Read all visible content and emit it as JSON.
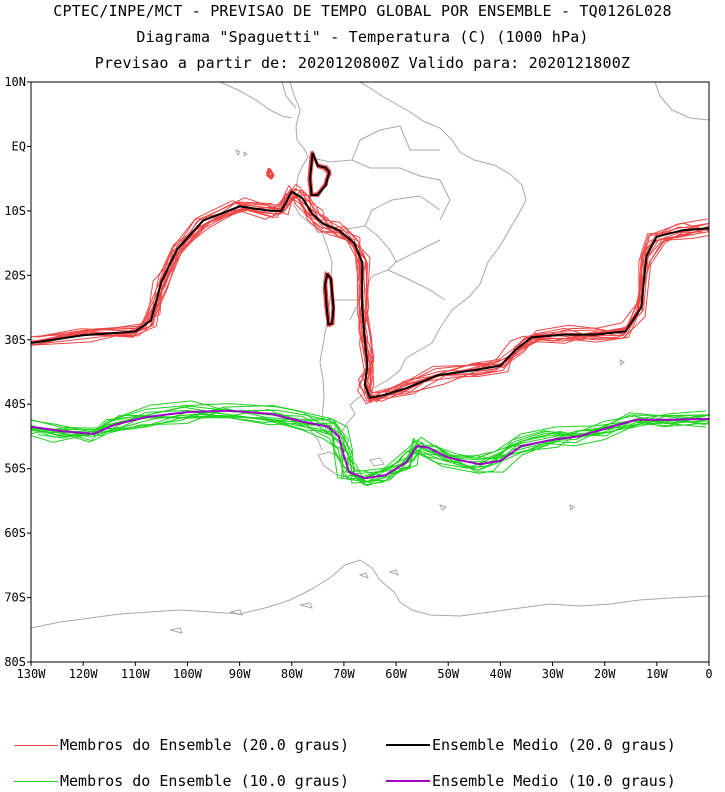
{
  "header": {
    "line1": "CPTEC/INPE/MCT - PREVISAO DE TEMPO GLOBAL POR ENSEMBLE - TQ0126L028",
    "line2": "Diagrama \"Spaguetti\" - Temperatura (C) (1000 hPa)",
    "line3": "Previsao a partir de: 2020120800Z  Valido para: 2020121800Z"
  },
  "axes": {
    "lat_labels": [
      "10N",
      "EQ",
      "10S",
      "20S",
      "30S",
      "40S",
      "50S",
      "60S",
      "70S",
      "80S"
    ],
    "lon_labels": [
      "130W",
      "120W",
      "110W",
      "100W",
      "90W",
      "80W",
      "70W",
      "60W",
      "50W",
      "40W",
      "30W",
      "20W",
      "10W",
      "0"
    ]
  },
  "colors": {
    "member20": "#f04646",
    "mean20": "#000000",
    "member10": "#1ed21e",
    "mean10": "#a000c8",
    "land": "#a8a8a8"
  },
  "legend": [
    {
      "label": "Membros do Ensemble (20.0 graus)",
      "color": "#f04646"
    },
    {
      "label": "Ensemble Medio (20.0 graus)",
      "color": "#000000"
    },
    {
      "label": "Membros do Ensemble (10.0 graus)",
      "color": "#1ed21e"
    },
    {
      "label": "Ensemble Medio (10.0 graus)",
      "color": "#a000c8"
    }
  ],
  "isotherm_20_mean": [
    [
      -130,
      -30.5
    ],
    [
      -120,
      -29.3
    ],
    [
      -110,
      -28.7
    ],
    [
      -107,
      -27
    ],
    [
      -105,
      -21
    ],
    [
      -102,
      -16
    ],
    [
      -97,
      -11.5
    ],
    [
      -90,
      -9.3
    ],
    [
      -84,
      -10
    ],
    [
      -82,
      -10
    ],
    [
      -80,
      -7
    ],
    [
      -78,
      -8
    ],
    [
      -76,
      -10.5
    ],
    [
      -74,
      -12
    ],
    [
      -71,
      -13
    ],
    [
      -68,
      -15
    ],
    [
      -66.5,
      -18
    ],
    [
      -66.5,
      -25
    ],
    [
      -66,
      -30
    ],
    [
      -65.5,
      -34
    ],
    [
      -66,
      -37
    ],
    [
      -65,
      -39
    ],
    [
      -62,
      -38.5
    ],
    [
      -58,
      -37.5
    ],
    [
      -52,
      -35.5
    ],
    [
      -45,
      -34.7
    ],
    [
      -40,
      -34
    ],
    [
      -37,
      -31.5
    ],
    [
      -34,
      -29.6
    ],
    [
      -28,
      -29.2
    ],
    [
      -22,
      -29.2
    ],
    [
      -16,
      -28.7
    ],
    [
      -13,
      -25
    ],
    [
      -12,
      -17
    ],
    [
      -10,
      -14
    ],
    [
      -5,
      -13
    ],
    [
      0,
      -12.7
    ]
  ],
  "isotherm_10_mean": [
    [
      -130,
      -43.5
    ],
    [
      -124,
      -44.2
    ],
    [
      -118,
      -44.6
    ],
    [
      -114,
      -43.2
    ],
    [
      -108,
      -42
    ],
    [
      -100,
      -41.2
    ],
    [
      -92,
      -41
    ],
    [
      -84,
      -41.5
    ],
    [
      -78,
      -42.7
    ],
    [
      -73,
      -43.5
    ],
    [
      -71,
      -45
    ],
    [
      -70,
      -48
    ],
    [
      -69,
      -50.5
    ],
    [
      -66,
      -51.5
    ],
    [
      -62,
      -51
    ],
    [
      -58,
      -49
    ],
    [
      -56,
      -46.5
    ],
    [
      -54,
      -46.7
    ],
    [
      -50,
      -48.3
    ],
    [
      -44,
      -49.3
    ],
    [
      -40,
      -48.8
    ],
    [
      -36,
      -46.5
    ],
    [
      -30,
      -45.5
    ],
    [
      -25,
      -45
    ],
    [
      -20,
      -43.8
    ],
    [
      -14,
      -42.4
    ],
    [
      -8,
      -42.4
    ],
    [
      0,
      -42.3
    ]
  ],
  "isotherm_20_loop_north": [
    [
      -76,
      -1
    ],
    [
      -75,
      -3
    ],
    [
      -73.5,
      -3.3
    ],
    [
      -72.8,
      -4
    ],
    [
      -73.5,
      -6
    ],
    [
      -75,
      -7.5
    ],
    [
      -76.2,
      -7.6
    ],
    [
      -76.5,
      -5
    ],
    [
      -76,
      -1
    ]
  ],
  "isotherm_20_loop_andes": [
    [
      -72.5,
      -20.5
    ],
    [
      -72,
      -25
    ],
    [
      -72.3,
      -27.5
    ],
    [
      -73,
      -27.6
    ],
    [
      -73.3,
      -25
    ],
    [
      -73.6,
      -21.5
    ],
    [
      -73.2,
      -19.8
    ],
    [
      -72.5,
      -20.5
    ]
  ],
  "isotherm_20_loop_small": [
    [
      -84.2,
      -3.6
    ],
    [
      -83.6,
      -4.4
    ],
    [
      -83.9,
      -4.8
    ],
    [
      -84.6,
      -4.3
    ],
    [
      -84.2,
      -3.6
    ]
  ]
}
